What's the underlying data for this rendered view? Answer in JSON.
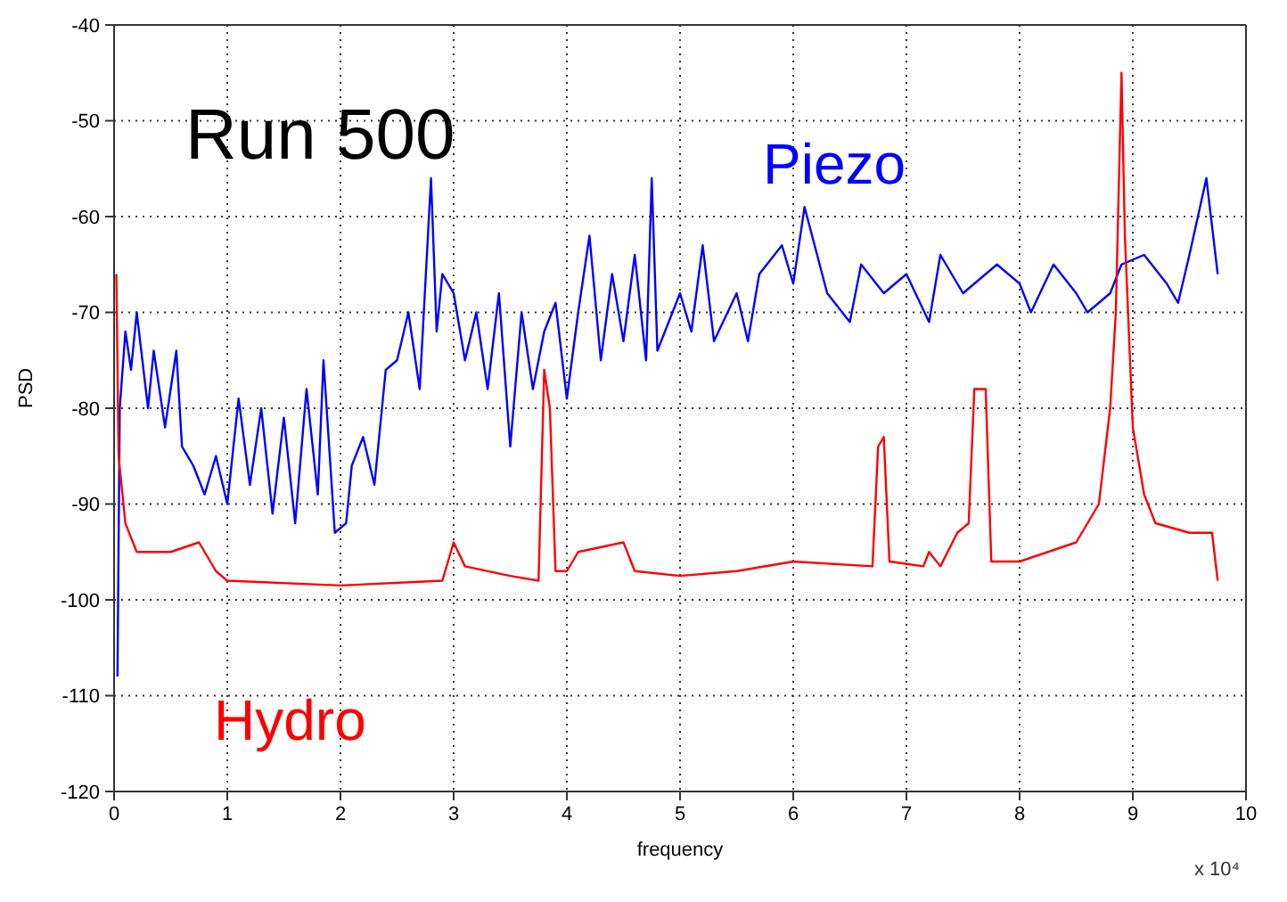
{
  "chart_data": {
    "type": "line",
    "xlabel": "frequency",
    "ylabel": "PSD",
    "annotations": [
      "Run 500",
      "x 10⁴"
    ],
    "xlim": [
      0,
      10
    ],
    "xticks": [
      0,
      1,
      2,
      3,
      4,
      5,
      6,
      7,
      8,
      9,
      10
    ],
    "ylim": [
      -120,
      -40
    ],
    "yticks": [
      -120,
      -110,
      -100,
      -90,
      -80,
      -70,
      -60,
      -50,
      -40
    ],
    "grid": true,
    "legend": false,
    "marker": "none",
    "line_style": "solid",
    "series": [
      {
        "name": "Piezo",
        "color": "#0000ff",
        "x": [
          0.03,
          0.05,
          0.1,
          0.15,
          0.2,
          0.3,
          0.35,
          0.45,
          0.55,
          0.6,
          0.7,
          0.8,
          0.9,
          1.0,
          1.1,
          1.2,
          1.3,
          1.4,
          1.5,
          1.6,
          1.7,
          1.8,
          1.85,
          1.95,
          2.05,
          2.1,
          2.2,
          2.3,
          2.4,
          2.5,
          2.6,
          2.7,
          2.8,
          2.85,
          2.9,
          3.0,
          3.1,
          3.2,
          3.3,
          3.4,
          3.5,
          3.6,
          3.7,
          3.8,
          3.9,
          4.0,
          4.1,
          4.2,
          4.3,
          4.4,
          4.5,
          4.6,
          4.7,
          4.75,
          4.8,
          5.0,
          5.1,
          5.2,
          5.3,
          5.5,
          5.6,
          5.7,
          5.9,
          6.0,
          6.1,
          6.3,
          6.5,
          6.6,
          6.8,
          7.0,
          7.2,
          7.3,
          7.5,
          7.7,
          7.8,
          8.0,
          8.1,
          8.3,
          8.5,
          8.6,
          8.8,
          8.9,
          9.1,
          9.3,
          9.4,
          9.5,
          9.65,
          9.7,
          9.75
        ],
        "values": [
          -108,
          -80,
          -72,
          -76,
          -70,
          -80,
          -74,
          -82,
          -74,
          -84,
          -86,
          -89,
          -85,
          -90,
          -79,
          -88,
          -80,
          -91,
          -81,
          -92,
          -78,
          -89,
          -75,
          -93,
          -92,
          -86,
          -83,
          -88,
          -76,
          -75,
          -70,
          -78,
          -56,
          -72,
          -66,
          -68,
          -75,
          -70,
          -78,
          -68,
          -84,
          -70,
          -78,
          -72,
          -69,
          -79,
          -70,
          -62,
          -75,
          -66,
          -73,
          -64,
          -75,
          -56,
          -74,
          -68,
          -72,
          -63,
          -73,
          -68,
          -73,
          -66,
          -63,
          -67,
          -59,
          -68,
          -71,
          -65,
          -68,
          -66,
          -71,
          -64,
          -68,
          -66,
          -65,
          -67,
          -70,
          -65,
          -68,
          -70,
          -68,
          -65,
          -64,
          -67,
          -69,
          -64,
          -56,
          -61,
          -66
        ]
      },
      {
        "name": "Hydro",
        "color": "#ff0000",
        "x": [
          0.02,
          0.04,
          0.1,
          0.2,
          0.5,
          0.75,
          0.9,
          1.0,
          2.0,
          2.9,
          3.0,
          3.1,
          3.5,
          3.75,
          3.8,
          3.85,
          3.9,
          4.0,
          4.1,
          4.5,
          4.6,
          5.0,
          5.5,
          6.0,
          6.7,
          6.75,
          6.8,
          6.85,
          7.15,
          7.2,
          7.3,
          7.45,
          7.55,
          7.6,
          7.7,
          7.75,
          8.0,
          8.5,
          8.7,
          8.8,
          8.85,
          8.9,
          8.93,
          9.0,
          9.1,
          9.2,
          9.5,
          9.7,
          9.75
        ],
        "values": [
          -66,
          -85,
          -92,
          -95,
          -95,
          -94,
          -97,
          -98,
          -98.5,
          -98,
          -94,
          -96.5,
          -97.5,
          -98,
          -76,
          -80,
          -97,
          -97,
          -95,
          -94,
          -97,
          -97.5,
          -97,
          -96,
          -96.5,
          -84,
          -83,
          -96,
          -96.5,
          -95,
          -96.5,
          -93,
          -92,
          -78,
          -78,
          -96,
          -96,
          -94,
          -90,
          -80,
          -70,
          -45,
          -62,
          -82,
          -89,
          -92,
          -93,
          -93,
          -98
        ]
      }
    ]
  }
}
